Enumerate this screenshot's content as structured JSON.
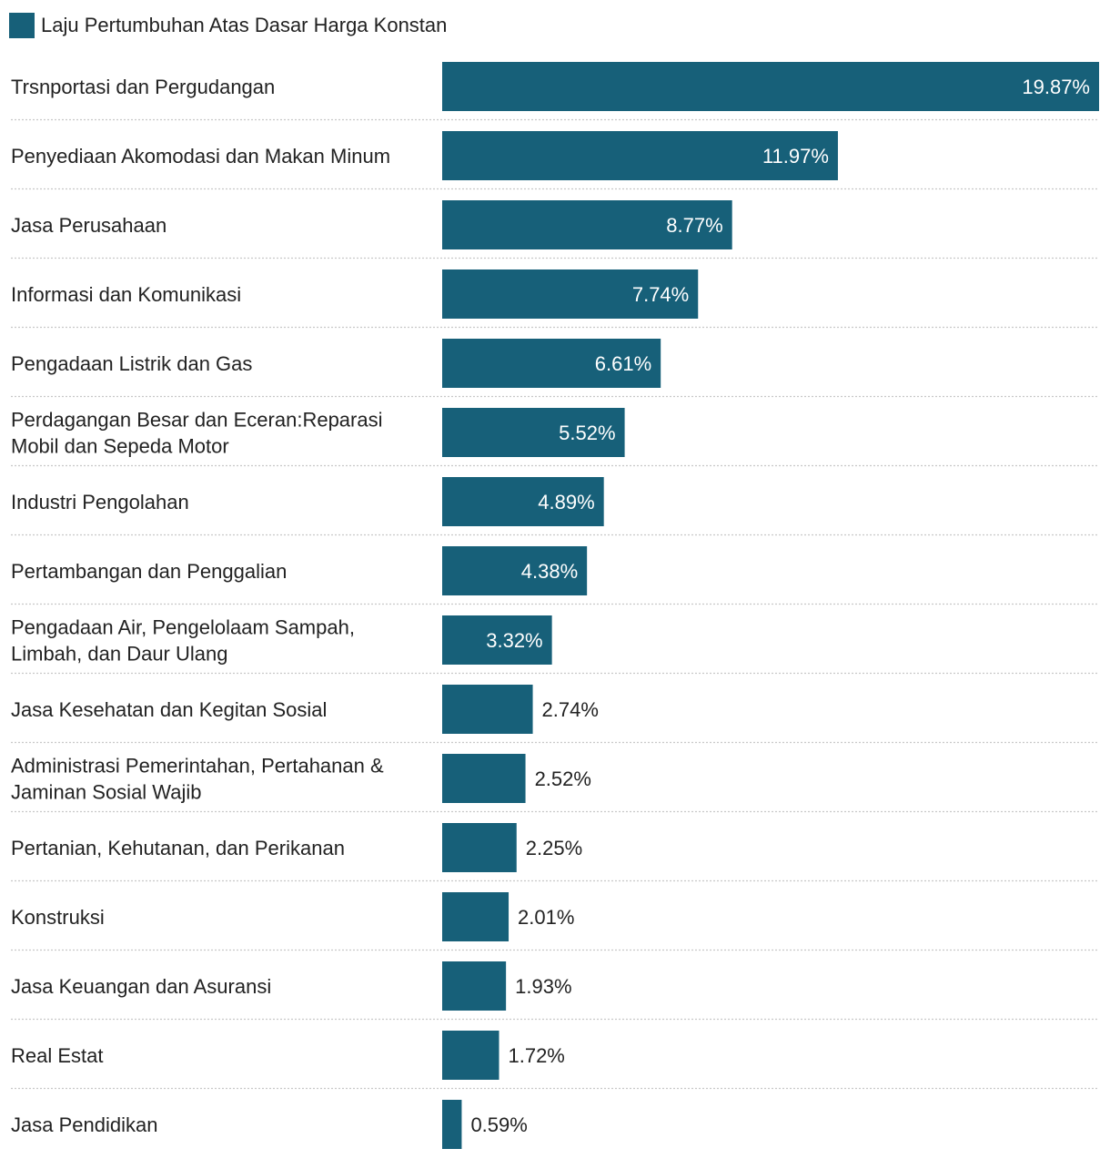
{
  "legend": {
    "label": "Laju Pertumbuhan Atas Dasar Harga Konstan"
  },
  "colors": {
    "bar": "#176079",
    "label_inside": "#ffffff",
    "label_outside": "#222222",
    "separator": "#c8c8c8"
  },
  "chart_data": {
    "type": "bar",
    "orientation": "horizontal",
    "legend_position": "top-left",
    "grid": false,
    "xlim": [
      0,
      19.87
    ],
    "value_suffix": "%",
    "series": [
      {
        "name": "Laju Pertumbuhan Atas Dasar Harga Konstan"
      }
    ],
    "categories": [
      [
        "Trsnportasi dan Pergudangan"
      ],
      [
        "Penyediaan Akomodasi dan Makan Minum"
      ],
      [
        "Jasa Perusahaan"
      ],
      [
        "Informasi dan Komunikasi"
      ],
      [
        "Pengadaan Listrik dan Gas"
      ],
      [
        "Perdagangan Besar dan Eceran:Reparasi",
        "Mobil dan Sepeda Motor"
      ],
      [
        "Industri Pengolahan"
      ],
      [
        "Pertambangan dan Penggalian"
      ],
      [
        "Pengadaan Air, Pengelolaam Sampah,",
        "Limbah, dan Daur Ulang"
      ],
      [
        "Jasa Kesehatan dan Kegitan Sosial"
      ],
      [
        "Administrasi Pemerintahan, Pertahanan &",
        "Jaminan Sosial Wajib"
      ],
      [
        "Pertanian, Kehutanan, dan Perikanan"
      ],
      [
        "Konstruksi"
      ],
      [
        "Jasa Keuangan dan Asuransi"
      ],
      [
        "Real Estat"
      ],
      [
        "Jasa Pendidikan"
      ]
    ],
    "values": [
      19.87,
      11.97,
      8.77,
      7.74,
      6.61,
      5.52,
      4.89,
      4.38,
      3.32,
      2.74,
      2.52,
      2.25,
      2.01,
      1.93,
      1.72,
      0.59
    ],
    "labels": [
      "19.87%",
      "11.97%",
      "8.77%",
      "7.74%",
      "6.61%",
      "5.52%",
      "4.89%",
      "4.38%",
      "3.32%",
      "2.74%",
      "2.52%",
      "2.25%",
      "2.01%",
      "1.93%",
      "1.72%",
      "0.59%"
    ]
  }
}
